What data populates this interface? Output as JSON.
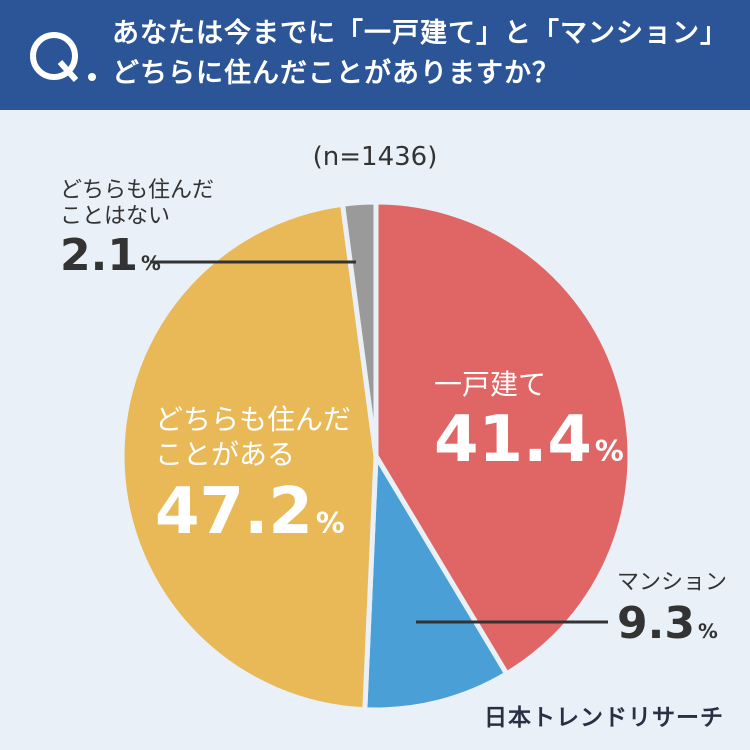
{
  "question": {
    "mark": "Q",
    "line1": "あなたは今までに「一戸建て」と「マンション」",
    "line2": "どちらに住んだことがありますか？"
  },
  "chart_data": {
    "type": "pie",
    "sample_size_label": "(n=1436)",
    "slices": [
      {
        "label": "一戸建て",
        "value": 41.4,
        "display": "41.4",
        "unit": "%",
        "color": "#e06666"
      },
      {
        "label": "マンション",
        "value": 9.3,
        "display": "9.3",
        "unit": "%",
        "color": "#4a9fd6"
      },
      {
        "label": "どちらも住んだことがある",
        "value": 47.2,
        "display": "47.2",
        "unit": "%",
        "color": "#e9b958"
      },
      {
        "label": "どちらも住んだことはない",
        "value": 2.1,
        "display": "2.1",
        "unit": "%",
        "color": "#9a9a9a"
      }
    ],
    "label_lines": {
      "house": "一戸建て",
      "mansion": "マンション",
      "both_1": "どちらも住んだ",
      "both_2": "ことがある",
      "neither_1": "どちらも住んだ",
      "neither_2": "ことはない"
    }
  },
  "brand": "日本トレンドリサーチ"
}
